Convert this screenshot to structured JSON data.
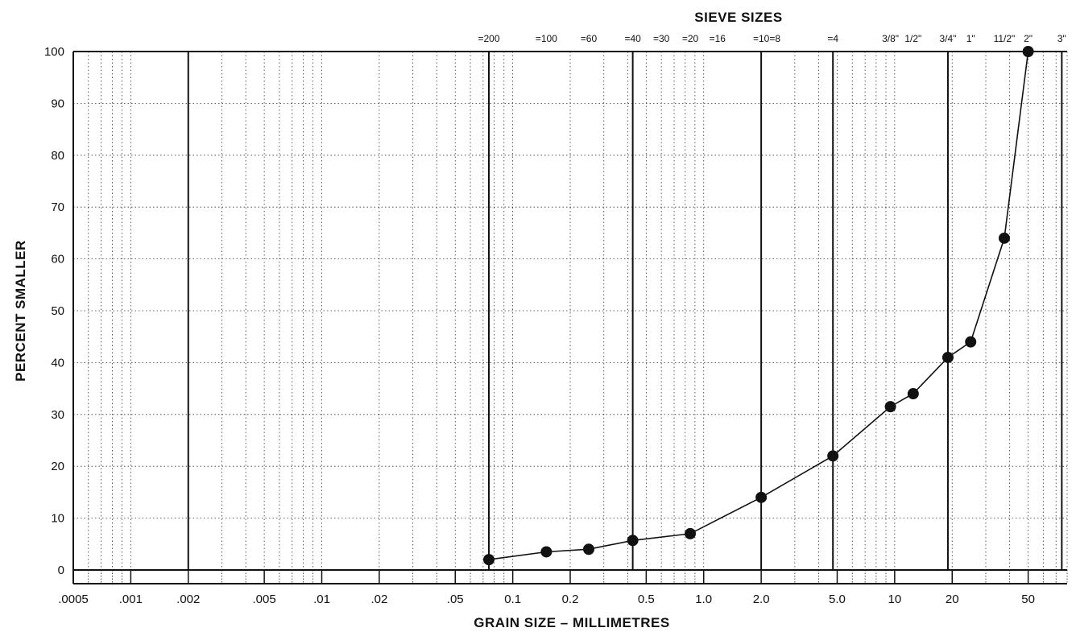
{
  "chart_data": {
    "type": "line",
    "title": "SIEVE SIZES",
    "xlabel": "GRAIN SIZE – MILLIMETRES",
    "ylabel": "PERCENT SMALLER",
    "x_scale": "log",
    "xlim": [
      0.0005,
      80
    ],
    "ylim": [
      0,
      100
    ],
    "y_ticks": [
      0,
      10,
      20,
      30,
      40,
      50,
      60,
      70,
      80,
      90,
      100
    ],
    "x_ticks": [
      {
        "value": 0.0005,
        "label": ".0005"
      },
      {
        "value": 0.001,
        "label": ".001"
      },
      {
        "value": 0.002,
        "label": ".002"
      },
      {
        "value": 0.005,
        "label": ".005"
      },
      {
        "value": 0.01,
        "label": ".01"
      },
      {
        "value": 0.02,
        "label": ".02"
      },
      {
        "value": 0.05,
        "label": ".05"
      },
      {
        "value": 0.1,
        "label": "0.1"
      },
      {
        "value": 0.2,
        "label": "0.2"
      },
      {
        "value": 0.5,
        "label": "0.5"
      },
      {
        "value": 1.0,
        "label": "1.0"
      },
      {
        "value": 2.0,
        "label": "2.0"
      },
      {
        "value": 5.0,
        "label": "5.0"
      },
      {
        "value": 10,
        "label": "10"
      },
      {
        "value": 20,
        "label": "20"
      },
      {
        "value": 50,
        "label": "50"
      }
    ],
    "major_lines": [
      0.002,
      0.075,
      0.425,
      2.0,
      4.75,
      19.0,
      75
    ],
    "sieve_sizes": [
      {
        "value": 0.075,
        "label": "=200"
      },
      {
        "value": 0.15,
        "label": "=100"
      },
      {
        "value": 0.25,
        "label": "=60"
      },
      {
        "value": 0.425,
        "label": "=40"
      },
      {
        "value": 0.6,
        "label": "=30"
      },
      {
        "value": 0.85,
        "label": "=20"
      },
      {
        "value": 1.18,
        "label": "=16"
      },
      {
        "value": 2.0,
        "label": "=10"
      },
      {
        "value": 2.36,
        "label": "=8"
      },
      {
        "value": 4.75,
        "label": "=4"
      },
      {
        "value": 9.5,
        "label": "3/8\""
      },
      {
        "value": 12.5,
        "label": "1/2\""
      },
      {
        "value": 19.0,
        "label": "3/4\""
      },
      {
        "value": 25.0,
        "label": "1\""
      },
      {
        "value": 37.5,
        "label": "11/2\""
      },
      {
        "value": 50.0,
        "label": "2\""
      },
      {
        "value": 75.0,
        "label": "3\""
      }
    ],
    "series": [
      {
        "x": [
          0.075,
          0.15,
          0.25,
          0.425,
          0.85,
          2.0,
          4.75,
          9.5,
          12.5,
          19.0,
          25.0,
          37.5,
          50.0
        ],
        "y": [
          2,
          3.5,
          4,
          5.7,
          7,
          14,
          22,
          31.5,
          34,
          41,
          44,
          64,
          100
        ]
      }
    ]
  }
}
